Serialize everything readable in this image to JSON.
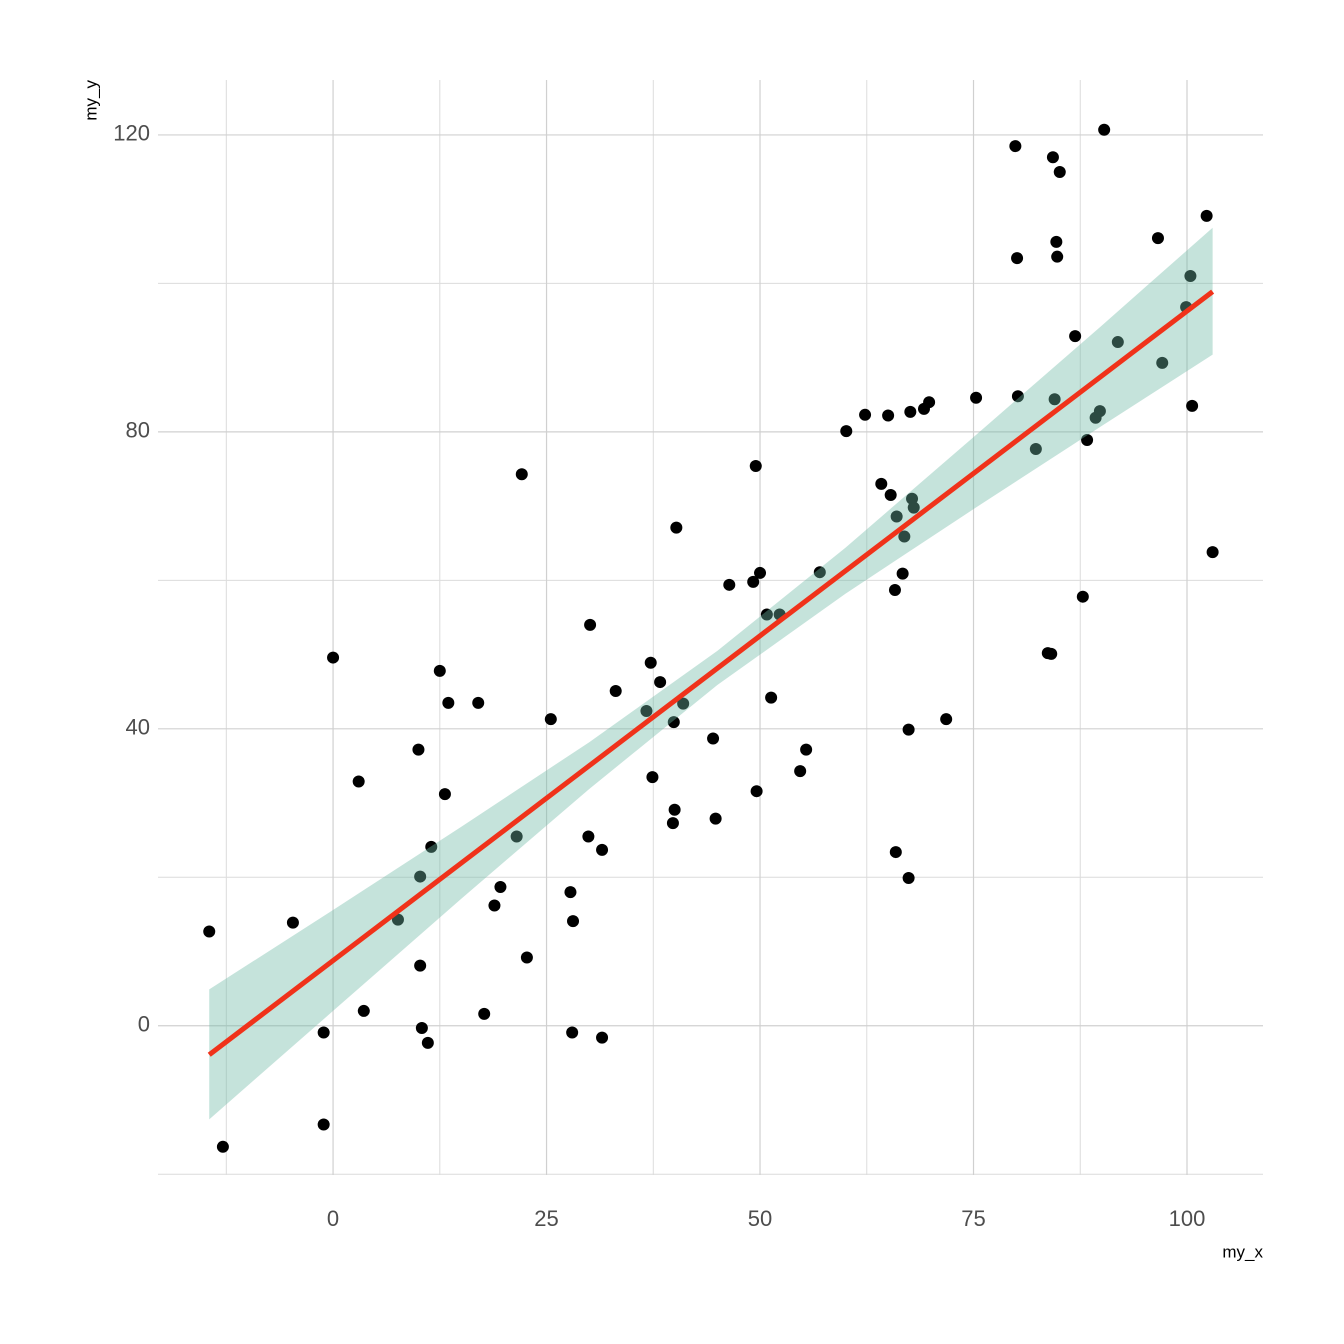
{
  "chart_data": {
    "type": "scatter",
    "x_label": "my_x",
    "y_label": "my_y",
    "x": [
      -14.5,
      -12.9,
      -4.7,
      -1.1,
      -1.1,
      0,
      3.0,
      3.6,
      7.6,
      10.0,
      10.2,
      10.2,
      10.4,
      11.1,
      11.5,
      12.5,
      13.1,
      13.5,
      17.0,
      17.7,
      18.9,
      19.6,
      21.5,
      22.1,
      22.7,
      25.5,
      27.8,
      28.0,
      28.1,
      29.9,
      30.1,
      31.5,
      31.5,
      33.1,
      36.7,
      37.4,
      37.2,
      38.3,
      39.8,
      39.9,
      40.0,
      40.2,
      41.0,
      44.5,
      44.8,
      46.4,
      49.2,
      49.5,
      49.6,
      50.0,
      50.8,
      51.3,
      52.3,
      54.7,
      55.4,
      57.0,
      60.1,
      62.3,
      64.2,
      65.0,
      65.3,
      65.8,
      65.9,
      66.0,
      66.7,
      66.9,
      67.4,
      67.4,
      67.6,
      67.8,
      68.0,
      69.2,
      69.8,
      71.8,
      75.3,
      79.9,
      80.1,
      80.2,
      82.3,
      83.7,
      84.1,
      84.3,
      84.5,
      84.7,
      84.8,
      85.1,
      86.9,
      87.8,
      88.3,
      89.3,
      89.8,
      90.3,
      91.9,
      96.6,
      97.1,
      99.9,
      100.4,
      100.6,
      102.3,
      103.0
    ],
    "values": [
      12.7,
      -16.3,
      13.9,
      -13.3,
      -0.9,
      49.6,
      32.9,
      2.0,
      14.3,
      37.2,
      20.1,
      8.1,
      -0.3,
      -2.3,
      24.1,
      47.8,
      31.2,
      43.5,
      43.5,
      1.6,
      16.2,
      18.7,
      25.5,
      74.3,
      9.2,
      41.3,
      18.0,
      -0.9,
      14.1,
      25.5,
      54.0,
      23.7,
      -1.6,
      45.1,
      42.4,
      33.5,
      48.9,
      46.3,
      27.3,
      40.9,
      29.1,
      67.1,
      43.4,
      38.7,
      27.9,
      59.4,
      59.8,
      75.4,
      31.6,
      61.0,
      55.4,
      44.2,
      55.4,
      34.3,
      37.2,
      61.1,
      80.1,
      82.3,
      73.0,
      82.2,
      71.5,
      58.7,
      23.4,
      68.6,
      60.9,
      65.9,
      39.9,
      19.9,
      82.7,
      71.0,
      69.8,
      83.1,
      84.0,
      41.3,
      84.6,
      118.5,
      103.4,
      84.8,
      77.7,
      50.2,
      50.1,
      117.0,
      84.4,
      105.6,
      103.6,
      115.0,
      92.9,
      57.8,
      78.9,
      81.9,
      82.8,
      120.7,
      92.1,
      106.1,
      89.3,
      96.8,
      101.0,
      83.5,
      109.1,
      63.8
    ],
    "color": "#000000",
    "fit_line": {
      "x": [
        -14.5,
        103
      ],
      "values": [
        -3.9,
        98.9
      ],
      "color": "#f0321a"
    },
    "band": {
      "x": [
        -14.5,
        0,
        15,
        30,
        45,
        60,
        75,
        90,
        103
      ],
      "lower": [
        -12.6,
        2.0,
        17.1,
        31.9,
        45.9,
        58.2,
        69.6,
        80.8,
        90.4
      ],
      "upper": [
        4.9,
        15.6,
        26.8,
        38.2,
        50.5,
        64.4,
        79.3,
        94.3,
        107.5
      ],
      "color": "#6eb9a5",
      "opacity": 0.4
    },
    "xlim": [
      -20.5,
      108.9
    ],
    "ylim": [
      -20.1,
      127.4
    ],
    "xticks": [
      0,
      25,
      50,
      75,
      100
    ],
    "yticks": [
      0,
      40,
      80,
      120
    ],
    "x_minor_grid": [
      -12.5,
      12.5,
      37.5,
      62.5,
      87.5
    ],
    "y_minor_grid": [
      -20,
      20,
      60,
      100
    ],
    "grid": true
  }
}
